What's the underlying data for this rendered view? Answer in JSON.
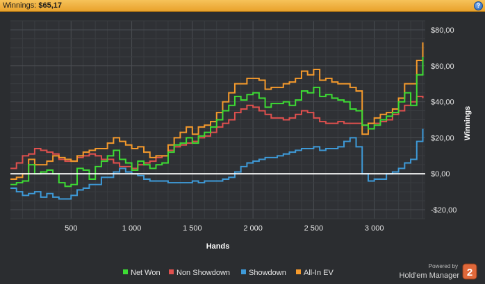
{
  "header": {
    "title_label": "Winnings:",
    "title_value": "$65,17",
    "help_label": "?"
  },
  "branding": {
    "powered_by": "Powered by",
    "product": "Hold'em Manager",
    "badge": "2"
  },
  "colors": {
    "net_won": "#3ddc34",
    "non_showdown": "#e0504e",
    "showdown": "#3e9ad8",
    "all_in_ev": "#f59a2c",
    "zero_line": "#ffffff",
    "title_bar": "#f0b13e"
  },
  "chart_data": {
    "type": "line",
    "title": "",
    "xlabel": "Hands",
    "ylabel": "Winnings",
    "xlim": [
      0,
      3420
    ],
    "ylim": [
      -25,
      85
    ],
    "x_ticks": [
      500,
      1000,
      1500,
      2000,
      2500,
      3000
    ],
    "x_tick_labels": [
      "500",
      "1 000",
      "1 500",
      "2 000",
      "2 500",
      "3 000"
    ],
    "y_ticks": [
      -20,
      0,
      20,
      40,
      60,
      80
    ],
    "y_tick_labels": [
      "-$20,00",
      "$0,00",
      "$20,00",
      "$40,00",
      "$60,00",
      "$80,00"
    ],
    "grid": true,
    "legend": "bottom",
    "zero_line": true,
    "series": [
      {
        "name": "Net Won",
        "x": [
          0,
          50,
          100,
          150,
          200,
          250,
          300,
          350,
          400,
          450,
          500,
          550,
          600,
          650,
          700,
          750,
          800,
          850,
          900,
          950,
          1000,
          1050,
          1100,
          1150,
          1200,
          1250,
          1300,
          1350,
          1400,
          1450,
          1500,
          1550,
          1600,
          1650,
          1700,
          1750,
          1800,
          1850,
          1900,
          1950,
          2000,
          2050,
          2100,
          2150,
          2200,
          2250,
          2300,
          2350,
          2400,
          2450,
          2500,
          2550,
          2600,
          2650,
          2700,
          2750,
          2800,
          2850,
          2900,
          2950,
          3000,
          3050,
          3100,
          3150,
          3200,
          3250,
          3300,
          3350,
          3400
        ],
        "values": [
          -6,
          -5,
          -4,
          5,
          0,
          1,
          2,
          0,
          -5,
          -7,
          -6,
          3,
          2,
          -3,
          4,
          7,
          10,
          13,
          8,
          6,
          2,
          7,
          5,
          3,
          5,
          6,
          12,
          16,
          17,
          20,
          17,
          21,
          23,
          26,
          30,
          35,
          38,
          43,
          41,
          44,
          45,
          42,
          37,
          39,
          39,
          40,
          38,
          41,
          46,
          45,
          48,
          43,
          44,
          42,
          41,
          40,
          36,
          35,
          27,
          25,
          27,
          30,
          32,
          34,
          40,
          45,
          38,
          55,
          65
        ]
      },
      {
        "name": "Non Showdown",
        "x": [
          0,
          50,
          100,
          150,
          200,
          250,
          300,
          350,
          400,
          450,
          500,
          550,
          600,
          650,
          700,
          750,
          800,
          850,
          900,
          950,
          1000,
          1050,
          1100,
          1150,
          1200,
          1250,
          1300,
          1350,
          1400,
          1450,
          1500,
          1550,
          1600,
          1650,
          1700,
          1750,
          1800,
          1850,
          1900,
          1950,
          2000,
          2050,
          2100,
          2150,
          2200,
          2250,
          2300,
          2350,
          2400,
          2450,
          2500,
          2550,
          2600,
          2650,
          2700,
          2750,
          2800,
          2850,
          2900,
          2950,
          3000,
          3050,
          3100,
          3150,
          3200,
          3250,
          3300,
          3350,
          3400
        ],
        "values": [
          3,
          6,
          10,
          11,
          14,
          13,
          12,
          11,
          8,
          7,
          7,
          9,
          10,
          11,
          10,
          8,
          8,
          6,
          4,
          4,
          3,
          5,
          6,
          7,
          9,
          10,
          13,
          15,
          16,
          17,
          18,
          20,
          21,
          23,
          26,
          28,
          30,
          34,
          36,
          38,
          37,
          35,
          33,
          31,
          31,
          30,
          31,
          33,
          35,
          34,
          31,
          29,
          28,
          28,
          29,
          28,
          28,
          28,
          27,
          28,
          28,
          29,
          30,
          33,
          35,
          38,
          40,
          43,
          42
        ]
      },
      {
        "name": "Showdown",
        "x": [
          0,
          50,
          100,
          150,
          200,
          250,
          300,
          350,
          400,
          450,
          500,
          550,
          600,
          650,
          700,
          750,
          800,
          850,
          900,
          950,
          1000,
          1050,
          1100,
          1150,
          1200,
          1250,
          1300,
          1350,
          1400,
          1450,
          1500,
          1550,
          1600,
          1650,
          1700,
          1750,
          1800,
          1850,
          1900,
          1950,
          2000,
          2050,
          2100,
          2150,
          2200,
          2250,
          2300,
          2350,
          2400,
          2450,
          2500,
          2550,
          2600,
          2650,
          2700,
          2750,
          2800,
          2850,
          2900,
          2950,
          3000,
          3050,
          3100,
          3150,
          3200,
          3250,
          3300,
          3350,
          3400
        ],
        "values": [
          -8,
          -10,
          -12,
          -11,
          -10,
          -13,
          -11,
          -13,
          -14,
          -14,
          -12,
          -9,
          -8,
          -6,
          -6,
          -2,
          -2,
          1,
          3,
          1,
          0,
          -1,
          -3,
          -4,
          -4,
          -4,
          -5,
          -5,
          -5,
          -5,
          -4,
          -5,
          -4,
          -4,
          -4,
          -3,
          -2,
          1,
          4,
          6,
          7,
          8,
          9,
          9,
          10,
          11,
          12,
          13,
          14,
          14,
          15,
          13,
          14,
          14,
          15,
          18,
          20,
          15,
          0,
          -4,
          -3,
          -3,
          0,
          1,
          3,
          6,
          8,
          18,
          25
        ]
      },
      {
        "name": "All-In EV",
        "x": [
          0,
          50,
          100,
          150,
          200,
          250,
          300,
          350,
          400,
          450,
          500,
          550,
          600,
          650,
          700,
          750,
          800,
          850,
          900,
          950,
          1000,
          1050,
          1100,
          1150,
          1200,
          1250,
          1300,
          1350,
          1400,
          1450,
          1500,
          1550,
          1600,
          1650,
          1700,
          1750,
          1800,
          1850,
          1900,
          1950,
          2000,
          2050,
          2100,
          2150,
          2200,
          2250,
          2300,
          2350,
          2400,
          2450,
          2500,
          2550,
          2600,
          2650,
          2700,
          2750,
          2800,
          2850,
          2900,
          2950,
          3000,
          3050,
          3100,
          3150,
          3200,
          3250,
          3300,
          3350,
          3400
        ],
        "values": [
          -3,
          -2,
          0,
          8,
          5,
          5,
          7,
          10,
          9,
          8,
          7,
          10,
          12,
          13,
          14,
          14,
          17,
          20,
          18,
          16,
          14,
          15,
          12,
          9,
          10,
          10,
          16,
          20,
          23,
          26,
          22,
          26,
          27,
          29,
          34,
          40,
          45,
          50,
          50,
          53,
          53,
          52,
          47,
          48,
          48,
          50,
          51,
          53,
          57,
          55,
          58,
          52,
          53,
          51,
          50,
          50,
          48,
          46,
          22,
          28,
          31,
          33,
          34,
          36,
          42,
          50,
          50,
          63,
          73
        ]
      }
    ]
  }
}
